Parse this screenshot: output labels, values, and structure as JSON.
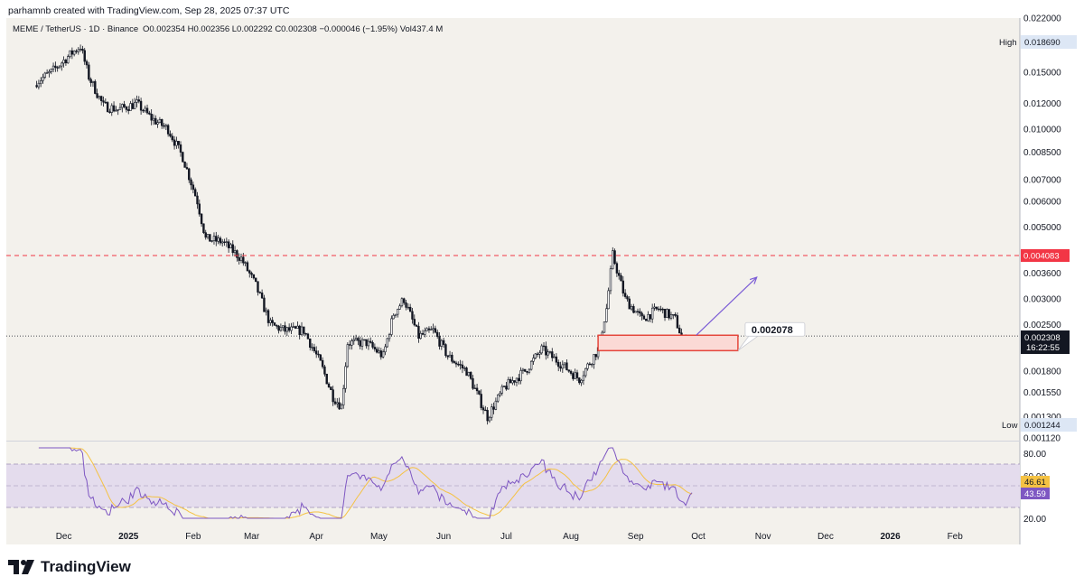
{
  "header": {
    "credit": "parhamnb created with TradingView.com, Sep 28, 2025 07:37 UTC",
    "symbol": "MEME / TetherUS · 1D · Binance",
    "ohlc": "O0.002354 H0.002356 L0.002292 C0.002308 −0.000046 (−1.95%) Vol437.4 M"
  },
  "brand": {
    "name": "TradingView"
  },
  "colors": {
    "background": "#f3f1ec",
    "candle": "#131722",
    "resistance": "#f23645",
    "support_box_fill": "#fbd9d5",
    "support_box_border": "#e4463b",
    "projection_arrow": "#7b5cd6",
    "rsi_line": "#7e57c2",
    "rsi_ma": "#f5c243",
    "rsi_band": "#e4dced"
  },
  "chart_data": [
    {
      "type": "candlestick",
      "scale": "log",
      "ylim": [
        0.00112,
        0.022
      ],
      "x_tick_labels": [
        "Dec",
        "2025",
        "Feb",
        "Mar",
        "Apr",
        "May",
        "Jun",
        "Jul",
        "Aug",
        "Sep",
        "Oct",
        "Nov",
        "Dec",
        "2026",
        "Feb"
      ],
      "y_tick_labels": [
        "0.022000",
        "0.015000",
        "0.012000",
        "0.010000",
        "0.008500",
        "0.007000",
        "0.006000",
        "0.005000",
        "0.004083",
        "0.003600",
        "0.003000",
        "0.002500",
        "0.001800",
        "0.001550",
        "0.001300",
        "0.001120"
      ],
      "high": {
        "label": "High",
        "value": "0.018690"
      },
      "low": {
        "label": "Low",
        "value": "0.001244"
      },
      "last_price": {
        "value": "0.002308",
        "countdown": "16:22:55"
      },
      "resistance": {
        "value": "0.004083"
      },
      "support_zone": {
        "label": "0.002078",
        "top": 0.00232,
        "bottom": 0.00208
      },
      "series_close_approx": [
        {
          "date": "2024-11-18",
          "close": 0.014
        },
        {
          "date": "2024-11-25",
          "close": 0.015
        },
        {
          "date": "2024-12-05",
          "close": 0.0172
        },
        {
          "date": "2024-12-09",
          "close": 0.018
        },
        {
          "date": "2024-12-13",
          "close": 0.0145
        },
        {
          "date": "2024-12-20",
          "close": 0.0118
        },
        {
          "date": "2024-12-27",
          "close": 0.0115
        },
        {
          "date": "2025-01-05",
          "close": 0.012
        },
        {
          "date": "2025-01-12",
          "close": 0.0108
        },
        {
          "date": "2025-01-20",
          "close": 0.01
        },
        {
          "date": "2025-01-27",
          "close": 0.0082
        },
        {
          "date": "2025-02-03",
          "close": 0.006
        },
        {
          "date": "2025-02-07",
          "close": 0.0046
        },
        {
          "date": "2025-02-15",
          "close": 0.0045
        },
        {
          "date": "2025-02-24",
          "close": 0.004
        },
        {
          "date": "2025-03-03",
          "close": 0.0033
        },
        {
          "date": "2025-03-10",
          "close": 0.0025
        },
        {
          "date": "2025-03-17",
          "close": 0.0024
        },
        {
          "date": "2025-03-26",
          "close": 0.0024
        },
        {
          "date": "2025-04-03",
          "close": 0.0019
        },
        {
          "date": "2025-04-09",
          "close": 0.0015
        },
        {
          "date": "2025-04-13",
          "close": 0.0014
        },
        {
          "date": "2025-04-16",
          "close": 0.0022
        },
        {
          "date": "2025-04-25",
          "close": 0.0022
        },
        {
          "date": "2025-05-03",
          "close": 0.002
        },
        {
          "date": "2025-05-08",
          "close": 0.0027
        },
        {
          "date": "2025-05-13",
          "close": 0.003
        },
        {
          "date": "2025-05-20",
          "close": 0.0023
        },
        {
          "date": "2025-05-27",
          "close": 0.0024
        },
        {
          "date": "2025-06-03",
          "close": 0.002
        },
        {
          "date": "2025-06-12",
          "close": 0.0018
        },
        {
          "date": "2025-06-22",
          "close": 0.0013
        },
        {
          "date": "2025-06-30",
          "close": 0.0016
        },
        {
          "date": "2025-07-10",
          "close": 0.0018
        },
        {
          "date": "2025-07-18",
          "close": 0.0021
        },
        {
          "date": "2025-07-27",
          "close": 0.0019
        },
        {
          "date": "2025-08-05",
          "close": 0.0017
        },
        {
          "date": "2025-08-14",
          "close": 0.0021
        },
        {
          "date": "2025-08-18",
          "close": 0.0028
        },
        {
          "date": "2025-08-21",
          "close": 0.0041
        },
        {
          "date": "2025-08-27",
          "close": 0.003
        },
        {
          "date": "2025-09-04",
          "close": 0.0026
        },
        {
          "date": "2025-09-12",
          "close": 0.0028
        },
        {
          "date": "2025-09-20",
          "close": 0.0026
        },
        {
          "date": "2025-09-24",
          "close": 0.0022
        },
        {
          "date": "2025-09-28",
          "close": 0.002308
        }
      ],
      "projection_arrow": {
        "from": {
          "date": "2025-09-30",
          "price": 0.00232
        },
        "to": {
          "date": "2025-10-29",
          "price": 0.0035
        }
      }
    },
    {
      "type": "line",
      "name": "RSI",
      "ylim": [
        20,
        80
      ],
      "y_tick_labels": [
        "80.00",
        "60.00",
        "20.00"
      ],
      "rsi_value": "43.59",
      "rsi_ma_value": "46.61",
      "bands": [
        30,
        70
      ]
    }
  ]
}
